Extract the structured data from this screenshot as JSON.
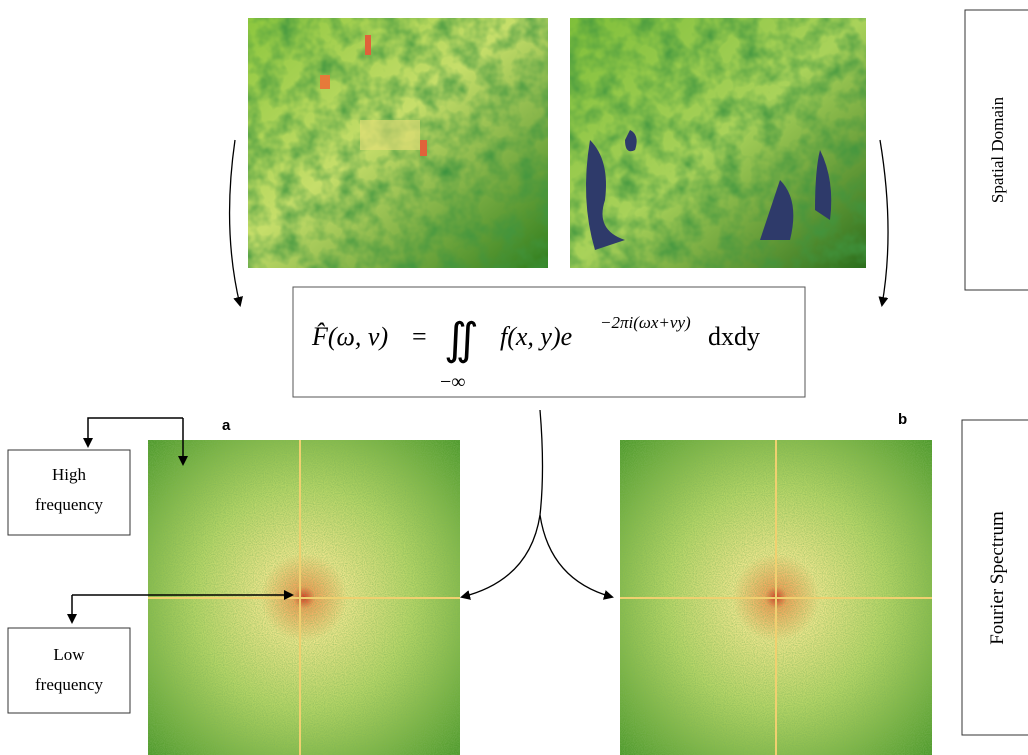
{
  "labels": {
    "spatial_domain": "Spatial Domain",
    "fourier_spectrum": "Fourier Spectrum"
  },
  "callouts": {
    "high": [
      "High",
      "frequency"
    ],
    "low": [
      "Low",
      "frequency"
    ]
  },
  "panels": {
    "a": "a",
    "b": "b"
  },
  "formula": {
    "lhs": "F̂(ω, v)",
    "equals": "=",
    "integral": "∬",
    "body": "f(x, y)e",
    "exponent": "−2πi(ωx+vy)",
    "tail": "dxdy",
    "lower_limit": "−∞"
  }
}
